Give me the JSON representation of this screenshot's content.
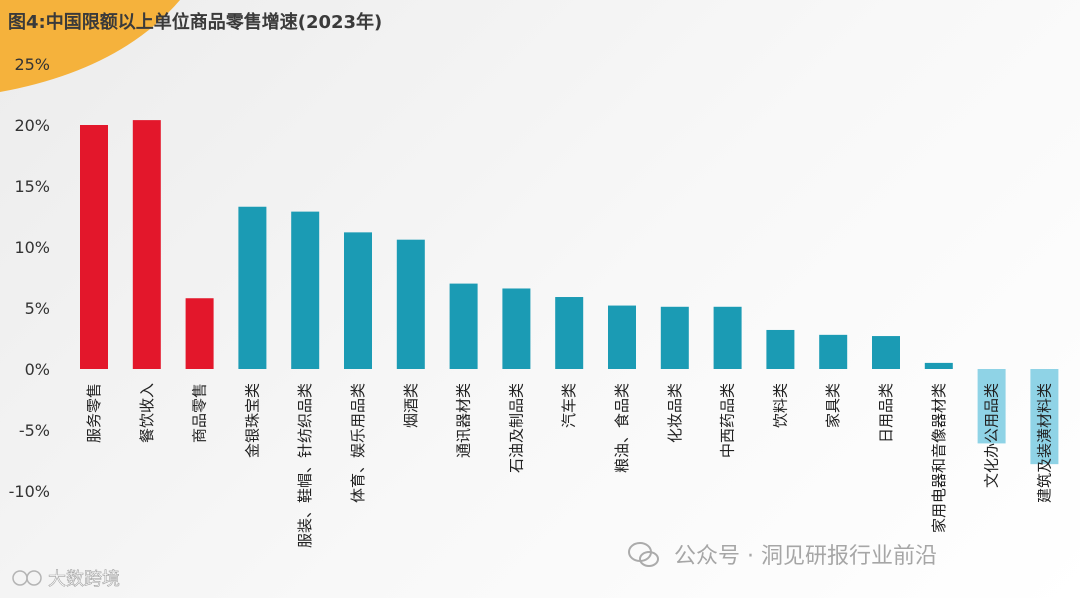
{
  "colors": {
    "highlight": "#e3172b",
    "normal": "#1b9bb4",
    "light": "#8fd3e6",
    "accent_arc": "#f5b23c"
  },
  "chart_data": {
    "type": "bar",
    "title": "图4:中国限额以上单位商品零售增速(2023年)",
    "categories": [
      "服务零售",
      "餐饮收入",
      "商品零售",
      "金银珠宝类",
      "服装、鞋帽、针纺织品类",
      "体育、娱乐用品类",
      "烟酒类",
      "通讯器材类",
      "石油及制品类",
      "汽车类",
      "粮油、食品类",
      "化妆品类",
      "中西药品类",
      "饮料类",
      "家具类",
      "日用品类",
      "家用电器和音像器材类",
      "文化办公用品类",
      "建筑及装潢材料类"
    ],
    "values": [
      20.0,
      20.4,
      5.8,
      13.3,
      12.9,
      11.2,
      10.6,
      7.0,
      6.6,
      5.9,
      5.2,
      5.1,
      5.1,
      3.2,
      2.8,
      2.7,
      0.5,
      -6.1,
      -7.8
    ],
    "bar_color_keys": [
      "highlight",
      "highlight",
      "highlight",
      "normal",
      "normal",
      "normal",
      "normal",
      "normal",
      "normal",
      "normal",
      "normal",
      "normal",
      "normal",
      "normal",
      "normal",
      "normal",
      "normal",
      "light",
      "light"
    ],
    "yticks": [
      "25%",
      "20%",
      "15%",
      "10%",
      "5%",
      "0%",
      "-5%",
      "-10%"
    ],
    "ytick_values": [
      25,
      20,
      15,
      10,
      5,
      0,
      -5,
      -10
    ],
    "ylim": [
      -10,
      25
    ],
    "grid": false,
    "legend": "none"
  },
  "watermark": {
    "main": "公众号 · 洞见研报行业前沿",
    "corner": "大数跨境"
  }
}
